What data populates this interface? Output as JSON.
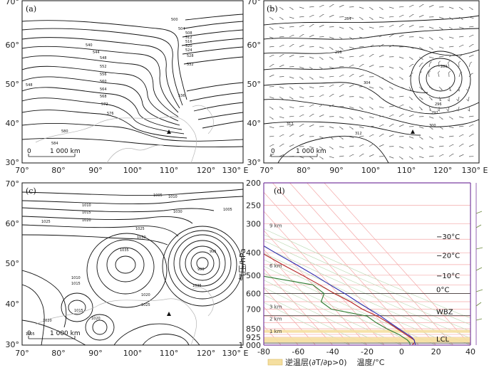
{
  "colors": {
    "frame": "#111111",
    "contour": "#111111",
    "coast": "#b5b5b5",
    "skewt_frame": "#7a3fa0",
    "skewt_grid": "#f4a8a8",
    "temperature": "#b22222",
    "dewpoint": "#2e7d32",
    "parcel": "#2b2bb0",
    "inversion": "#f5dfa0"
  },
  "maps": [
    {
      "label": "(a)",
      "scale_zero": "0",
      "scale_text": "1 000 km",
      "contour_labels": [
        "500",
        "504",
        "508",
        "512",
        "516",
        "520",
        "524",
        "528",
        "532",
        "536",
        "540",
        "544",
        "548",
        "552",
        "556",
        "560",
        "564",
        "568",
        "572",
        "576",
        "580",
        "584",
        "548"
      ]
    },
    {
      "label": "(b)",
      "scale_zero": "0",
      "scale_text": "1 000 km",
      "contour_labels": [
        "284",
        "288",
        "292",
        "296",
        "300",
        "304",
        "308",
        "312",
        "280",
        "296",
        "312"
      ]
    },
    {
      "label": "(c)",
      "scale_zero": "0",
      "scale_text": "1 000 km",
      "contour_labels": [
        "1005",
        "1010",
        "1015",
        "1020",
        "1025",
        "1030",
        "1035",
        "1010",
        "1015",
        "1020",
        "1025",
        "1030",
        "1005",
        "995",
        "990",
        "1010",
        "1020",
        "1025",
        "1015",
        "1005",
        "1035",
        "1020"
      ]
    }
  ],
  "map_axes": {
    "x_ticks": [
      "70°",
      "80°",
      "90°",
      "100°",
      "110°",
      "120°",
      "130° E"
    ],
    "y_ticks": [
      "70°",
      "60°",
      "50°",
      "40°",
      "30°"
    ]
  },
  "chart_data": {
    "type": "line",
    "label": "(d)",
    "xlabel": "温度/°C",
    "ylabel": "气压/hPa",
    "x_ticks": [
      "-80",
      "-60",
      "-40",
      "-20",
      "0",
      "20",
      "40"
    ],
    "xlim": [
      -80,
      40
    ],
    "y_ticks": [
      "200",
      "250",
      "300",
      "400",
      "500",
      "600",
      "700",
      "850",
      "925",
      "1 000"
    ],
    "ylim": [
      1000,
      200
    ],
    "y_scale": "log",
    "height_labels": [
      "9 km",
      "6 km",
      "3 km",
      "2 km",
      "1 km"
    ],
    "height_pressures": [
      315,
      470,
      705,
      795,
      900
    ],
    "level_labels": [
      "−30°C",
      "−20°C",
      "−10°C",
      "0°C",
      "WBZ",
      "LCL"
    ],
    "level_pressures": [
      340,
      410,
      500,
      600,
      745,
      980
    ],
    "legend": "逆温层(∂T/∂p>0)",
    "series": [
      {
        "p": [
          1000,
          975,
          950,
          925,
          900,
          875,
          850,
          800,
          750,
          700,
          650,
          600,
          550,
          500,
          450,
          400,
          350,
          300,
          250,
          200
        ],
        "t": [
          6,
          9,
          10,
          9,
          8,
          7,
          6,
          4,
          1,
          -4,
          -7,
          -12,
          -16,
          -21,
          -27,
          -33,
          -40,
          -48,
          -55,
          -62
        ]
      },
      {
        "p": [
          1000,
          975,
          950,
          925,
          900,
          875,
          850,
          800,
          750,
          700,
          650,
          600,
          550,
          500,
          450,
          400,
          350,
          300,
          250,
          200
        ],
        "t": [
          5,
          6,
          6,
          5,
          4,
          2,
          0,
          -3,
          -5,
          -22,
          -24,
          -18,
          -20,
          -47,
          -40,
          -33,
          -48,
          -58,
          -60,
          -62
        ]
      },
      {
        "p": [
          1000,
          975,
          950,
          925,
          900,
          875,
          850,
          800,
          750,
          700,
          650,
          600,
          550,
          500,
          450,
          400,
          350,
          300,
          250,
          200
        ],
        "t": [
          8,
          9,
          10,
          10,
          9,
          8,
          7,
          5,
          3,
          0,
          -3,
          -6,
          -10,
          -14,
          -19,
          -25,
          -31,
          -39,
          -48,
          -60
        ]
      }
    ],
    "inversion_layers": [
      [
        925,
        975
      ],
      [
        860,
        885
      ]
    ]
  }
}
